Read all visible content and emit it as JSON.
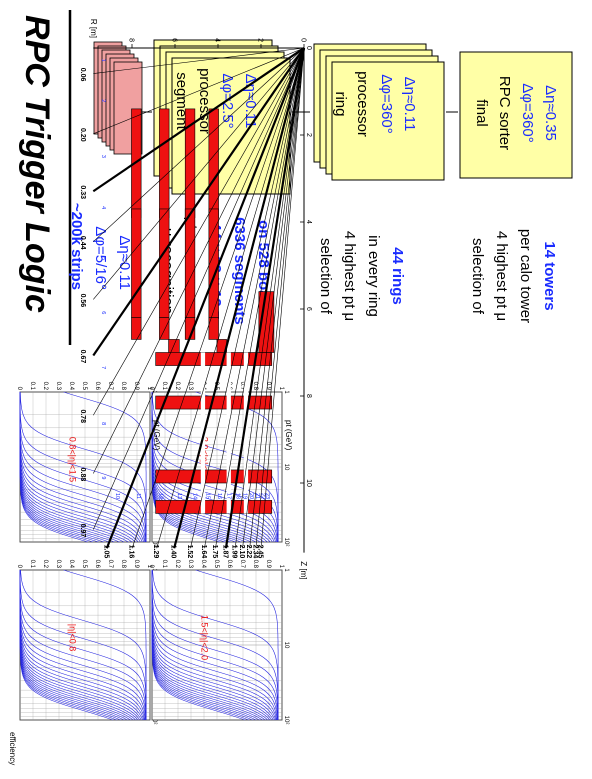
{
  "title": "RPC Trigger Logic",
  "colors": {
    "blue": "#1a2cff",
    "red": "#ee1111",
    "box_fill": "#ffffa6",
    "strip_fill": "#f0a0a0",
    "grid": "#2828e0"
  },
  "stack1": {
    "lines": [
      "~200k strips",
      "Δφ=5/16°",
      "Δη≈0.11"
    ]
  },
  "box1": {
    "label1": "segment",
    "label2": "processor",
    "dphi": "Δφ=2.5°",
    "deta": "Δη≈0.11"
  },
  "desc1": {
    "lines": [
      "μ recognition",
      "pt measurement",
      "44 × 12 × 12 =",
      "6336 segments",
      "on 528 boards"
    ]
  },
  "box2": {
    "label1": "ring",
    "label2": "processor",
    "dphi": "Δφ=360°",
    "deta": "Δη≈0.11"
  },
  "desc2": {
    "lines": [
      "selection of",
      "4 highest pt μ",
      "in every ring",
      "44 rings"
    ]
  },
  "box3": {
    "label1": "final",
    "label2": "RPC sorter",
    "dphi": "Δφ=360°",
    "deta": "Δη≈0.35"
  },
  "desc3": {
    "lines": [
      "selection of",
      "4 highest pt μ",
      "per calo tower",
      "14 towers"
    ]
  },
  "eff": {
    "ylabel": "efficiency",
    "xlabel": "pt (GeV)",
    "yticks": [
      "1",
      "0.9",
      "0.8",
      "0.7",
      "0.6",
      "0.5",
      "0.4",
      "0.3",
      "0.2",
      "0.1",
      "0"
    ],
    "xticks": [
      "1",
      "10",
      "10²"
    ],
    "panels": [
      {
        "label": "|η|<0.8"
      },
      {
        "label": "0.8<|η|<1.5"
      },
      {
        "label": "1.5<|η|<2.0"
      },
      {
        "label": "2.0<|η|<2.5"
      }
    ]
  },
  "geom": {
    "rlabel": "R [m]",
    "zlabel": "Z [m]",
    "rticks": [
      "0",
      "2",
      "4",
      "6",
      "8"
    ],
    "zticks": [
      "0",
      "2",
      "4",
      "6",
      "8",
      "10"
    ],
    "eta_values": [
      "0.06",
      "0.20",
      "0.33",
      "0.44",
      "0.56",
      "0.67",
      "0.78",
      "0.88",
      "0.97",
      "1.05",
      "1.16",
      "1.29",
      "1.40",
      "1.52",
      "1.64",
      "1.75",
      "1.87",
      "1.99",
      "2.10",
      "2.22",
      "2.34",
      "2.45"
    ],
    "tower_ids": [
      "1",
      "2",
      "3",
      "4",
      "5",
      "6",
      "7",
      "8",
      "9",
      "10",
      "11",
      "12",
      "13",
      "14",
      "15",
      "16",
      "17",
      "18",
      "19",
      "20",
      "21",
      "22",
      "23"
    ]
  }
}
